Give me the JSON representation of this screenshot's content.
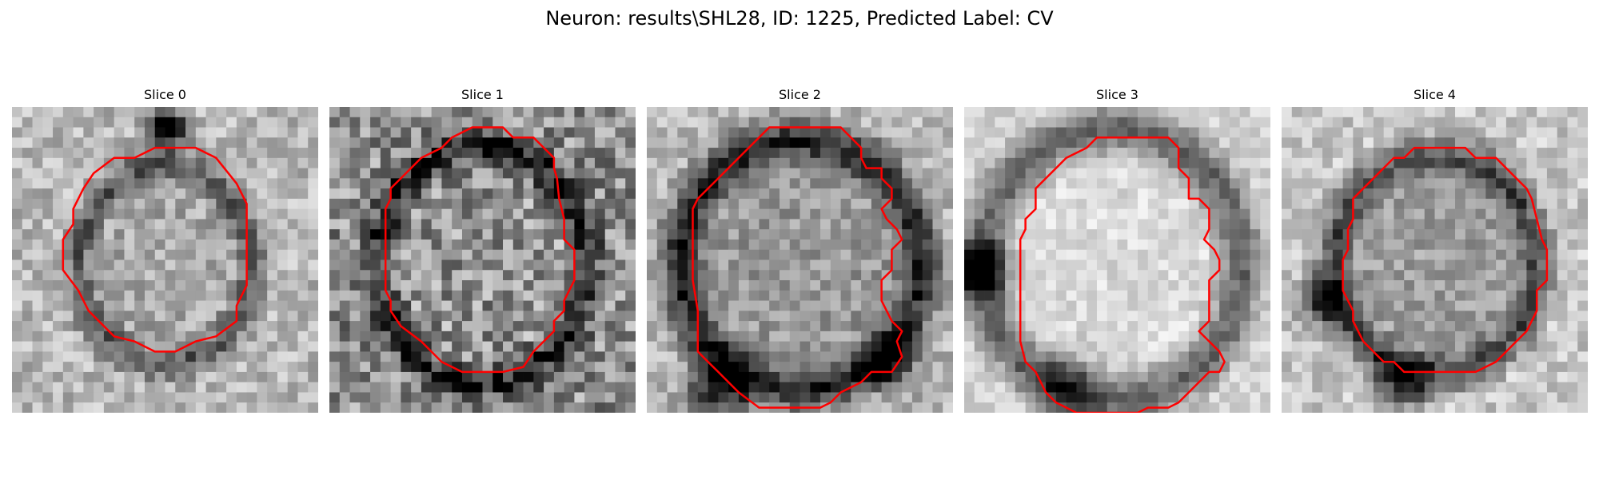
{
  "figure": {
    "title": "Neuron: results\\SHL28, ID: 1225, Predicted Label: CV"
  },
  "panels": [
    {
      "title": "Slice 0"
    },
    {
      "title": "Slice 1"
    },
    {
      "title": "Slice 2"
    },
    {
      "title": "Slice 3"
    },
    {
      "title": "Slice 4"
    }
  ],
  "colors": {
    "contour": "#ff0000"
  }
}
